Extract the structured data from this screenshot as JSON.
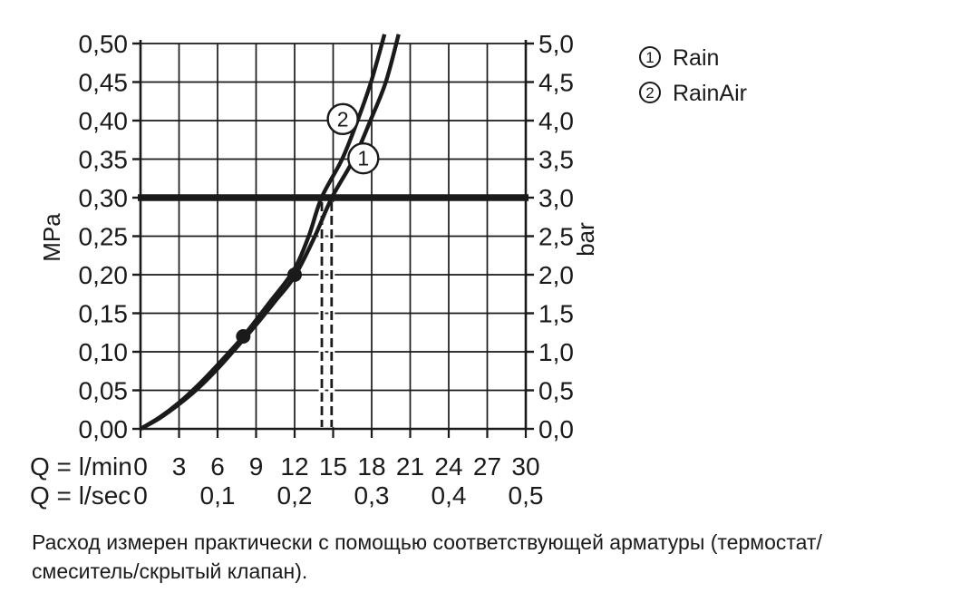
{
  "colors": {
    "ink": "#1a1a1a",
    "background": "#ffffff"
  },
  "chart_data": {
    "type": "line",
    "title": "",
    "x_axis": {
      "label_lmin": "Q = l/min",
      "label_lsec": "Q = l/sec",
      "range_lmin": [
        0,
        30
      ],
      "lmin_ticks": [
        {
          "q": 0,
          "label": "0"
        },
        {
          "q": 3,
          "label": "3"
        },
        {
          "q": 6,
          "label": "6"
        },
        {
          "q": 9,
          "label": "9"
        },
        {
          "q": 12,
          "label": "12"
        },
        {
          "q": 15,
          "label": "15"
        },
        {
          "q": 18,
          "label": "18"
        },
        {
          "q": 21,
          "label": "21"
        },
        {
          "q": 24,
          "label": "24"
        },
        {
          "q": 27,
          "label": "27"
        },
        {
          "q": 30,
          "label": "30"
        }
      ],
      "lsec_ticks": [
        {
          "q": 0,
          "label": "0"
        },
        {
          "q": 6,
          "label": "0,1"
        },
        {
          "q": 12,
          "label": "0,2"
        },
        {
          "q": 18,
          "label": "0,3"
        },
        {
          "q": 24,
          "label": "0,4"
        },
        {
          "q": 30,
          "label": "0,5"
        }
      ]
    },
    "y_axis_left": {
      "label": "MPa",
      "range": [
        0,
        0.5
      ]
    },
    "y_axis_right": {
      "label": "bar",
      "range": [
        0,
        5.0
      ]
    },
    "y_ticks": [
      {
        "p": 0.0,
        "mpa": "0,00",
        "bar": "0,0"
      },
      {
        "p": 0.05,
        "mpa": "0,05",
        "bar": "0,5"
      },
      {
        "p": 0.1,
        "mpa": "0,10",
        "bar": "1,0"
      },
      {
        "p": 0.15,
        "mpa": "0,15",
        "bar": "1,5"
      },
      {
        "p": 0.2,
        "mpa": "0,20",
        "bar": "2,0"
      },
      {
        "p": 0.25,
        "mpa": "0,25",
        "bar": "2,5"
      },
      {
        "p": 0.3,
        "mpa": "0,30",
        "bar": "3,0"
      },
      {
        "p": 0.35,
        "mpa": "0,35",
        "bar": "3,5"
      },
      {
        "p": 0.4,
        "mpa": "0,40",
        "bar": "4,0"
      },
      {
        "p": 0.45,
        "mpa": "0,45",
        "bar": "4,5"
      },
      {
        "p": 0.5,
        "mpa": "0,50",
        "bar": "5,0"
      }
    ],
    "grid": true,
    "reference_line_p": 0.3,
    "dashed_lines_q": [
      14.12,
      14.88
    ],
    "series": [
      {
        "id": "1",
        "name": "Rain",
        "points": [
          [
            0,
            0
          ],
          [
            1.5,
            0.014
          ],
          [
            3,
            0.032
          ],
          [
            4.5,
            0.053
          ],
          [
            6,
            0.078
          ],
          [
            7.5,
            0.106
          ],
          [
            9,
            0.135
          ],
          [
            10.5,
            0.166
          ],
          [
            12,
            0.198
          ],
          [
            13.5,
            0.247
          ],
          [
            14.9,
            0.3
          ],
          [
            16.6,
            0.35
          ],
          [
            17.9,
            0.4
          ],
          [
            19.1,
            0.45
          ],
          [
            20.1,
            0.512
          ]
        ]
      },
      {
        "id": "2",
        "name": "RainAir",
        "points": [
          [
            0,
            0
          ],
          [
            1.5,
            0.015
          ],
          [
            3,
            0.034
          ],
          [
            4.5,
            0.057
          ],
          [
            6,
            0.083
          ],
          [
            8,
            0.12
          ],
          [
            10,
            0.163
          ],
          [
            11.9,
            0.205
          ],
          [
            13.1,
            0.25
          ],
          [
            14.1,
            0.3
          ],
          [
            15.7,
            0.35
          ],
          [
            16.9,
            0.4
          ],
          [
            17.95,
            0.45
          ],
          [
            19.0,
            0.512
          ]
        ]
      }
    ],
    "markers": [
      {
        "q": 8,
        "p": 0.12
      },
      {
        "q": 12,
        "p": 0.2
      }
    ],
    "curve_badges": [
      {
        "label": "2",
        "q": 15.75,
        "p": 0.402
      },
      {
        "label": "1",
        "q": 17.35,
        "p": 0.351
      }
    ],
    "legend_position": "top-right"
  },
  "legend": {
    "items": [
      {
        "num": "1",
        "label": "Rain"
      },
      {
        "num": "2",
        "label": "RainAir"
      }
    ]
  },
  "caption": {
    "line1": "Расход измерен практически с помощью соответствующей арматуры (термостат/",
    "line2": "смеситель/скрытый клапан)."
  }
}
